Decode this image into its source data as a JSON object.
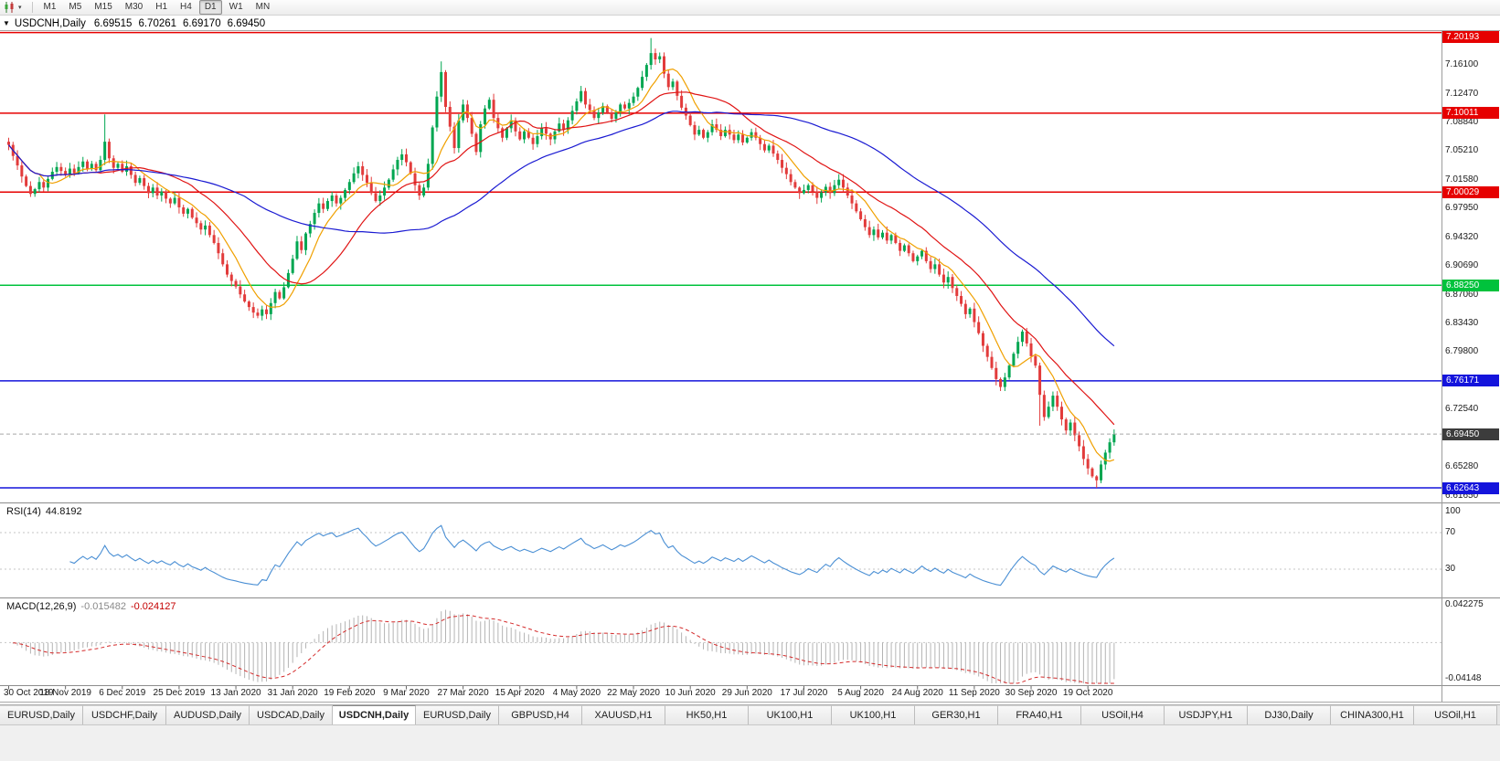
{
  "icons": {
    "caret_down": "▾",
    "title_caret": "▼"
  },
  "toolbar": {
    "timeframes": [
      "M1",
      "M5",
      "M15",
      "M30",
      "H1",
      "H4",
      "D1",
      "W1",
      "MN"
    ],
    "active_timeframe": "D1"
  },
  "title_bar": {
    "symbol": "USDCNH,Daily",
    "open": "6.69515",
    "high": "6.70261",
    "low": "6.69170",
    "close": "6.69450"
  },
  "tabs": {
    "items": [
      "EURUSD,Daily",
      "USDCHF,Daily",
      "AUDUSD,Daily",
      "USDCAD,Daily",
      "USDCNH,Daily",
      "EURUSD,Daily",
      "GBPUSD,H4",
      "XAUUSD,H1",
      "HK50,H1",
      "UK100,H1",
      "UK100,H1",
      "GER30,H1",
      "FRA40,H1",
      "USOil,H4",
      "USDJPY,H1",
      "DJ30,Daily",
      "CHINA300,H1",
      "USOil,H1"
    ],
    "active_index": 4
  },
  "chart_data": [
    {
      "id": "price",
      "type": "candlestick",
      "symbol": "USDCNH",
      "timeframe": "Daily",
      "y_axis_range": [
        6.608,
        7.205
      ],
      "y_ticks": [
        "7.16100",
        "7.12470",
        "7.08840",
        "7.05210",
        "7.01580",
        "6.97950",
        "6.94320",
        "6.90690",
        "6.87060",
        "6.83430",
        "6.79800",
        "6.76170",
        "6.72540",
        "6.68910",
        "6.65280",
        "6.61650"
      ],
      "x_labels": [
        "30 Oct 2019",
        "18 Nov 2019",
        "6 Dec 2019",
        "25 Dec 2019",
        "13 Jan 2020",
        "31 Jan 2020",
        "19 Feb 2020",
        "9 Mar 2020",
        "27 Mar 2020",
        "15 Apr 2020",
        "4 May 2020",
        "22 May 2020",
        "10 Jun 2020",
        "29 Jun 2020",
        "17 Jul 2020",
        "5 Aug 2020",
        "24 Aug 2020",
        "11 Sep 2020",
        "30 Sep 2020",
        "19 Oct 2020"
      ],
      "label_every": 13,
      "colors": {
        "up": "#00A651",
        "down": "#E23B3B"
      },
      "levels": [
        {
          "label": "7.20193",
          "price": 7.20193,
          "line_color": "#E60000",
          "badge_color": "#E60000",
          "kind": "resistance"
        },
        {
          "label": "7.10011",
          "price": 7.10011,
          "line_color": "#E60000",
          "badge_color": "#E60000",
          "kind": "resistance"
        },
        {
          "label": "7.00029",
          "price": 7.00029,
          "line_color": "#E60000",
          "badge_color": "#E60000",
          "kind": "resistance"
        },
        {
          "label": "6.88250",
          "price": 6.8825,
          "line_color": "#00C23C",
          "badge_color": "#00C23C",
          "kind": "support"
        },
        {
          "label": "6.76171",
          "price": 6.76171,
          "line_color": "#1414DC",
          "badge_color": "#1414DC",
          "kind": "support"
        },
        {
          "label": "6.62643",
          "price": 6.62643,
          "line_color": "#1414DC",
          "badge_color": "#1414DC",
          "kind": "support"
        },
        {
          "label": "6.69450",
          "price": 6.6945,
          "line_color": "#A8A8A8",
          "badge_color": "#3C3C3C",
          "kind": "bid"
        }
      ],
      "moving_averages": [
        {
          "period": 8,
          "color": "#F0A000"
        },
        {
          "period": 21,
          "color": "#E01414"
        },
        {
          "period": 55,
          "color": "#1A1AD2"
        }
      ],
      "closes": [
        7.06,
        7.046,
        7.034,
        7.02,
        7.008,
        6.998,
        7.004,
        7.013,
        7.006,
        7.017,
        7.026,
        7.032,
        7.027,
        7.022,
        7.03,
        7.024,
        7.032,
        7.039,
        7.03,
        7.036,
        7.028,
        7.041,
        7.064,
        7.043,
        7.031,
        7.036,
        7.026,
        7.033,
        7.022,
        7.012,
        7.018,
        7.008,
        6.999,
        7.006,
        6.996,
        7.001,
        6.992,
        6.986,
        6.993,
        6.981,
        6.973,
        6.979,
        6.968,
        6.961,
        6.953,
        6.958,
        6.946,
        6.936,
        6.923,
        6.909,
        6.896,
        6.888,
        6.881,
        6.871,
        6.862,
        6.855,
        6.848,
        6.844,
        6.852,
        6.846,
        6.86,
        6.874,
        6.866,
        6.88,
        6.898,
        6.916,
        6.938,
        6.927,
        6.948,
        6.96,
        6.974,
        6.986,
        6.979,
        6.989,
        6.996,
        6.986,
        6.993,
        7.003,
        7.013,
        7.024,
        7.033,
        7.022,
        7.012,
        6.999,
        6.989,
        6.996,
        7.006,
        7.016,
        7.029,
        7.041,
        7.048,
        7.038,
        7.024,
        7.009,
        6.996,
        7.006,
        7.036,
        7.082,
        7.121,
        7.152,
        7.108,
        7.083,
        7.056,
        7.091,
        7.111,
        7.094,
        7.074,
        7.051,
        7.086,
        7.106,
        7.117,
        7.094,
        7.081,
        7.069,
        7.081,
        7.091,
        7.077,
        7.067,
        7.077,
        7.069,
        7.061,
        7.071,
        7.081,
        7.074,
        7.067,
        7.077,
        7.087,
        7.079,
        7.091,
        7.103,
        7.115,
        7.128,
        7.111,
        7.104,
        7.094,
        7.101,
        7.109,
        7.101,
        7.093,
        7.101,
        7.111,
        7.106,
        7.113,
        7.121,
        7.132,
        7.146,
        7.161,
        7.176,
        7.168,
        7.172,
        7.15,
        7.133,
        7.14,
        7.122,
        7.107,
        7.097,
        7.085,
        7.073,
        7.079,
        7.069,
        7.076,
        7.086,
        7.079,
        7.071,
        7.079,
        7.073,
        7.066,
        7.073,
        7.063,
        7.069,
        7.076,
        7.069,
        7.061,
        7.053,
        7.059,
        7.049,
        7.041,
        7.031,
        7.023,
        7.013,
        7.006,
        6.999,
        7.003,
        7.009,
        7.001,
        6.993,
        7.0,
        7.007,
        6.999,
        7.009,
        7.016,
        7.006,
        6.996,
        6.986,
        6.976,
        6.966,
        6.956,
        6.946,
        6.953,
        6.943,
        6.949,
        6.939,
        6.946,
        6.936,
        6.926,
        6.933,
        6.923,
        6.913,
        6.919,
        6.926,
        6.913,
        6.903,
        6.909,
        6.896,
        6.886,
        6.893,
        6.879,
        6.869,
        6.859,
        6.846,
        6.853,
        6.836,
        6.822,
        6.806,
        6.792,
        6.778,
        6.764,
        6.754,
        6.766,
        6.781,
        6.796,
        6.811,
        6.824,
        6.809,
        6.793,
        6.781,
        6.744,
        6.716,
        6.729,
        6.743,
        6.729,
        6.713,
        6.699,
        6.709,
        6.693,
        6.679,
        6.663,
        6.651,
        6.641,
        6.636,
        6.656,
        6.671,
        6.684,
        6.6945
      ],
      "overrides": {
        "22": {
          "high": 7.0985
        },
        "57": {
          "low": 6.8408
        },
        "99": {
          "high": 7.1655
        },
        "131": {
          "high": 7.1345
        },
        "147": {
          "high": 7.195
        },
        "236": {
          "low": 6.705
        },
        "249": {
          "low": 6.6265
        }
      }
    },
    {
      "id": "rsi",
      "type": "line",
      "label": "RSI(14)",
      "value": "44.8192",
      "period": 14,
      "range": [
        0,
        100
      ],
      "levels": [
        70,
        30
      ],
      "scale_labels": [
        "100",
        "70",
        "30"
      ],
      "color": "#4A8FD4"
    },
    {
      "id": "macd",
      "type": "histogram_line",
      "label": "MACD(12,26,9)",
      "params": [
        12,
        26,
        9
      ],
      "values": {
        "main": "-0.015482",
        "signal": "-0.024127"
      },
      "range": [
        -0.04148,
        0.042275
      ],
      "scale_labels": [
        "0.042275",
        "-0.04148"
      ],
      "colors": {
        "histogram": "#B4B4B4",
        "signal": "#D42A2A"
      }
    }
  ]
}
